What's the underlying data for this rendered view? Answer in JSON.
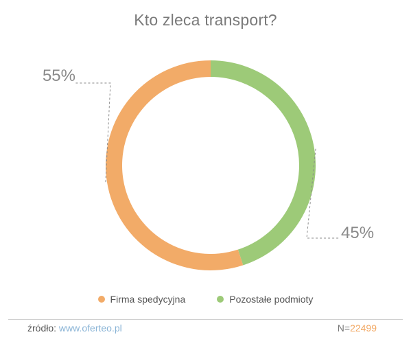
{
  "chart_data": {
    "type": "pie",
    "variant": "donut",
    "title": "Kto zleca transport?",
    "slices": [
      {
        "label": "Pozostałe podmioty",
        "value": 45,
        "display": "45%",
        "color": "#9dca78"
      },
      {
        "label": "Firma spedycyjna",
        "value": 55,
        "display": "55%",
        "color": "#f2ab68"
      }
    ],
    "legend_position": "bottom"
  },
  "legend": [
    {
      "label": "Firma spedycyjna",
      "color": "#f2ab68"
    },
    {
      "label": "Pozostałe podmioty",
      "color": "#9dca78"
    }
  ],
  "footer": {
    "source_label": "źródło:",
    "source_link": "www.oferteo.pl",
    "n_label": "N=",
    "n_value": "22499"
  }
}
